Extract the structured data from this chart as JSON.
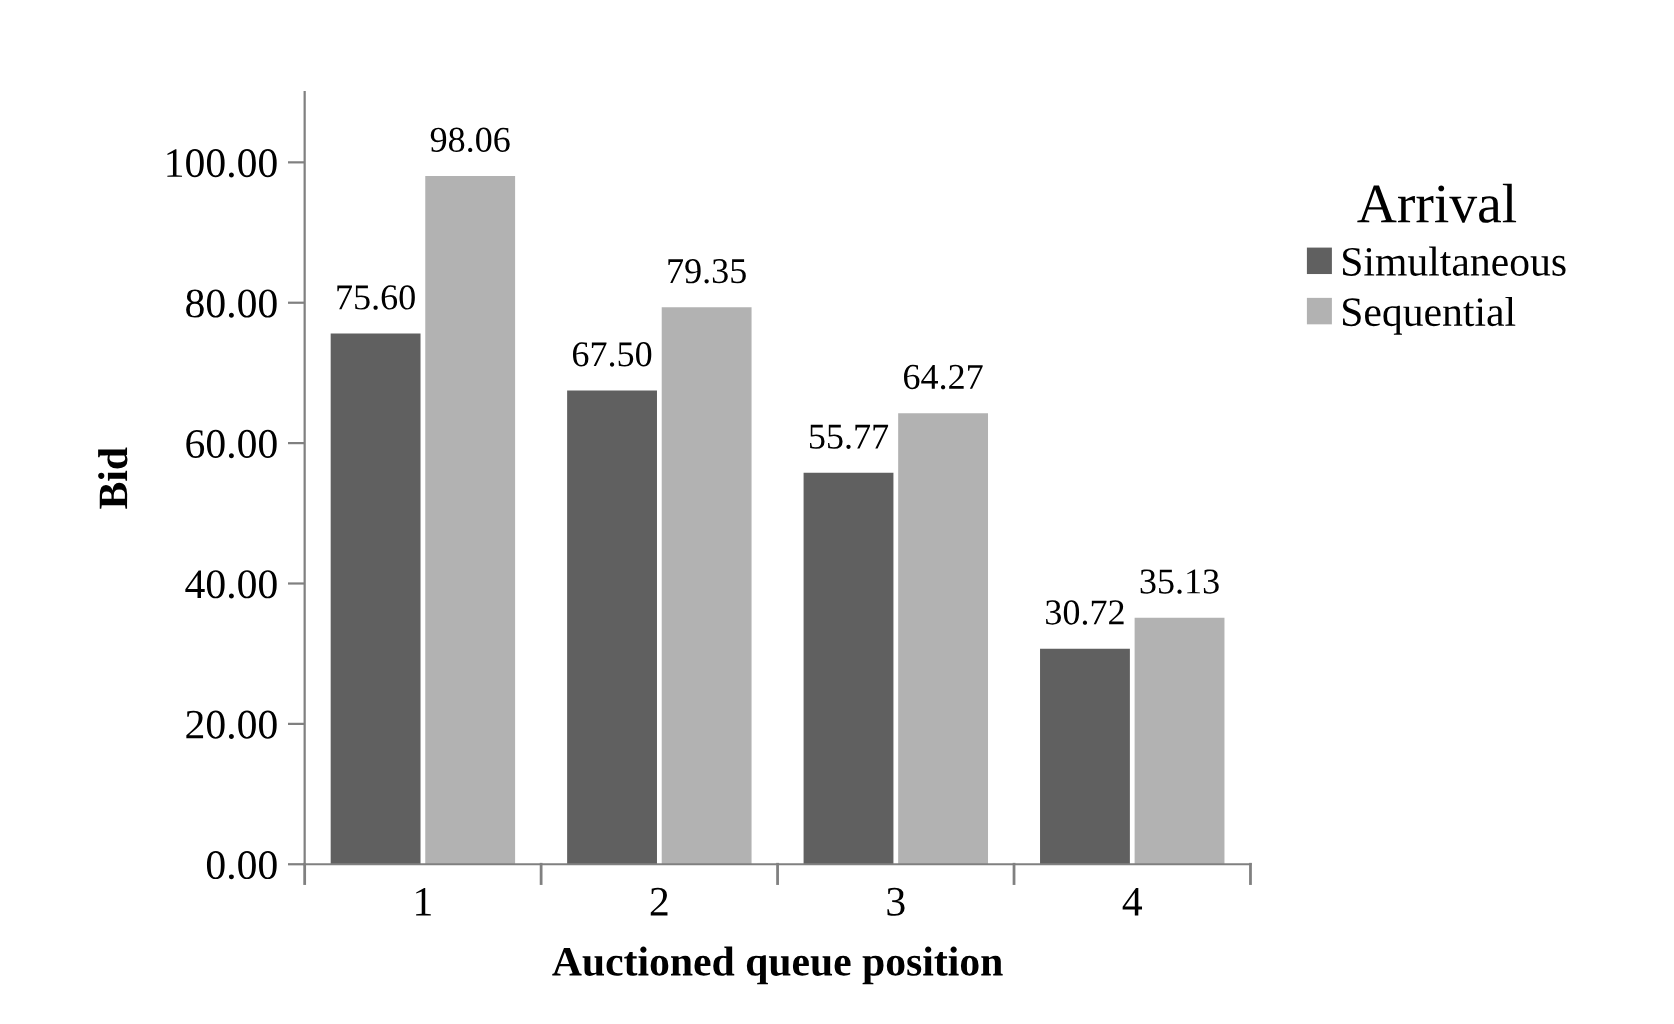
{
  "chart_data": {
    "type": "bar",
    "xlabel": "Auctioned queue position",
    "ylabel": "Bid",
    "legend_title": "Arrival",
    "categories": [
      "1",
      "2",
      "3",
      "4"
    ],
    "series": [
      {
        "name": "Simultaneous",
        "color": "#606060",
        "values": [
          75.6,
          67.5,
          55.77,
          30.72
        ],
        "value_labels": [
          "75.60",
          "67.50",
          "55.77",
          "30.72"
        ]
      },
      {
        "name": "Sequential",
        "color": "#b2b2b2",
        "values": [
          98.06,
          79.35,
          64.27,
          35.13
        ],
        "value_labels": [
          "98.06",
          "79.35",
          "64.27",
          "35.13"
        ]
      }
    ],
    "ylim": [
      0,
      110
    ],
    "yticks": [
      {
        "value": 0,
        "label": "0.00"
      },
      {
        "value": 20,
        "label": "20.00"
      },
      {
        "value": 40,
        "label": "40.00"
      },
      {
        "value": 60,
        "label": "60.00"
      },
      {
        "value": 80,
        "label": "80.00"
      },
      {
        "value": 100,
        "label": "100.00"
      }
    ],
    "grid": false,
    "legend": "right"
  }
}
